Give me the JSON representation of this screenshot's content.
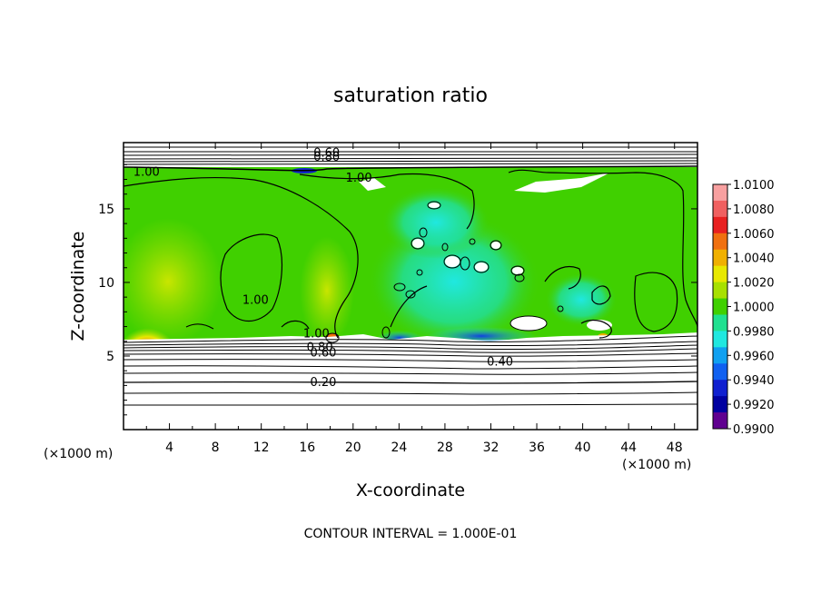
{
  "chart_data": {
    "type": "heatmap",
    "title": "saturation ratio",
    "xlabel": "X-coordinate",
    "ylabel": "Z-coordinate",
    "x_unit": "(×1000 m)",
    "y_unit": "(×1000 m)",
    "xlim": [
      0,
      50
    ],
    "ylim": [
      0,
      19.5
    ],
    "x_ticks": [
      4,
      8,
      12,
      16,
      20,
      24,
      28,
      32,
      36,
      40,
      44,
      48
    ],
    "y_ticks": [
      5,
      10,
      15
    ],
    "note": "CONTOUR INTERVAL = 1.000E-01",
    "colorbar": {
      "levels": [
        "1.0100",
        "1.0080",
        "1.0060",
        "1.0040",
        "1.0020",
        "1.0000",
        "0.9980",
        "0.9960",
        "0.9940",
        "0.9920",
        "0.9900"
      ],
      "colors": [
        "#f8a0a0",
        "#f06060",
        "#e82020",
        "#f07010",
        "#f0b000",
        "#e8e800",
        "#a8e000",
        "#40d000",
        "#20e090",
        "#20e8e0",
        "#10a0f0",
        "#1060f0",
        "#1020d0",
        "#0000a0",
        "#600090"
      ]
    },
    "contour_labels": [
      {
        "text": "0.60",
        "x": 17.7,
        "y": 18.8
      },
      {
        "text": "0.80",
        "x": 17.7,
        "y": 18.5
      },
      {
        "text": "1.00",
        "x": 2.0,
        "y": 17.5
      },
      {
        "text": "1.00",
        "x": 20.5,
        "y": 17.1
      },
      {
        "text": "1.00",
        "x": 11.5,
        "y": 8.8
      },
      {
        "text": "1.00",
        "x": 16.8,
        "y": 6.5
      },
      {
        "text": "0.80",
        "x": 17.1,
        "y": 5.6
      },
      {
        "text": "0.60",
        "x": 17.4,
        "y": 5.2
      },
      {
        "text": "0.40",
        "x": 32.8,
        "y": 4.6
      },
      {
        "text": "0.20",
        "x": 17.4,
        "y": 3.2
      }
    ]
  }
}
